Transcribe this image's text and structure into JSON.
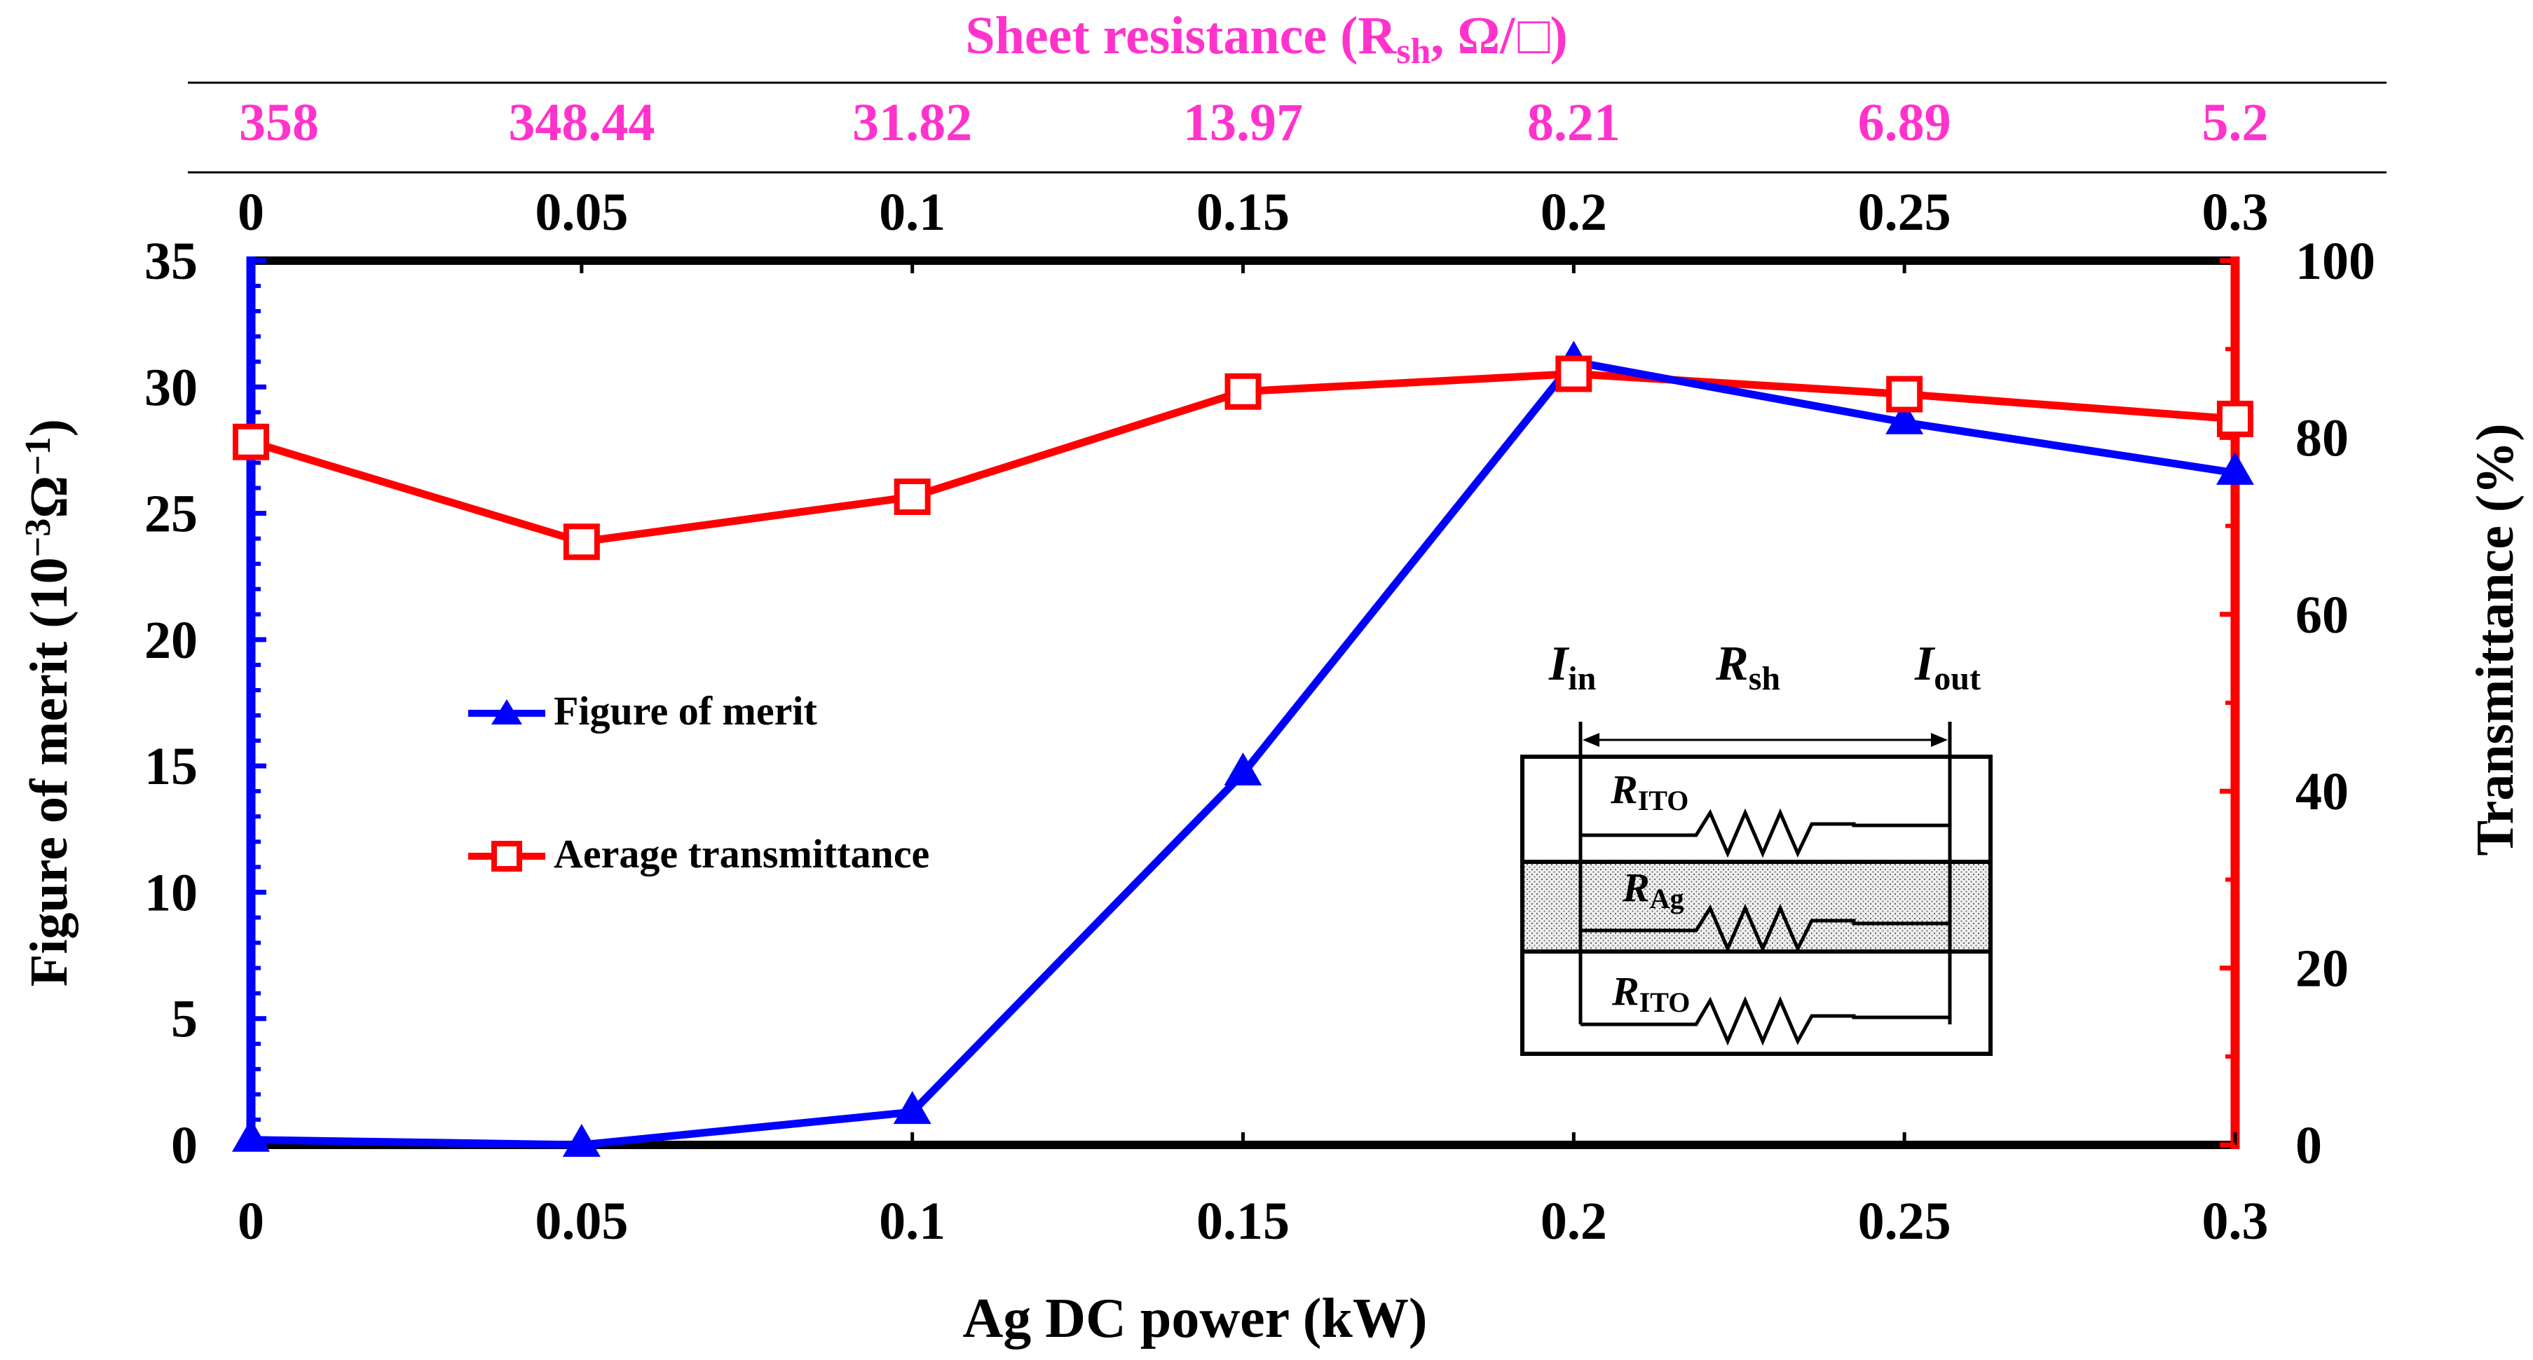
{
  "colors": {
    "figure_of_merit": "#0000ff",
    "transmittance": "#ff0000",
    "sheet_resistance": "#ff33cc",
    "axis": "#000000"
  },
  "chart_data": {
    "type": "line",
    "xlabel": "Ag DC power (kW)",
    "x_ticks": [
      "0",
      "0.05",
      "0.1",
      "0.15",
      "0.2",
      "0.25",
      "0.3"
    ],
    "x": [
      0,
      0.05,
      0.1,
      0.15,
      0.2,
      0.25,
      0.3
    ],
    "xlim": [
      0,
      0.3
    ],
    "top_axis": {
      "title": "Sheet resistance  (Rsh, Ω/□)",
      "title_main": "Sheet resistance  (R",
      "title_sub": "sh",
      "title_tail": ", Ω/",
      "title_close": ")",
      "values": [
        "358",
        "348.44",
        "31.82",
        "13.97",
        "8.21",
        "6.89",
        "5.2"
      ],
      "ticks": [
        "0",
        "0.05",
        "0.1",
        "0.15",
        "0.2",
        "0.25",
        "0.3"
      ]
    },
    "y_left": {
      "label_main": "Figure of merit (10",
      "label_sup1": "−3",
      "label_mid": "Ω",
      "label_sup2": "−1",
      "label_close": ")",
      "ylim": [
        0,
        35
      ],
      "ticks": [
        "0",
        "5",
        "10",
        "15",
        "20",
        "25",
        "30",
        "35"
      ]
    },
    "y_right": {
      "label": "Transmittance (%)",
      "ylim": [
        0,
        100
      ],
      "ticks": [
        "0",
        "20",
        "40",
        "60",
        "80",
        "100"
      ]
    },
    "series": [
      {
        "name": "Figure of merit",
        "axis": "left",
        "marker": "filled-triangle",
        "values": [
          0.2,
          0.0,
          1.3,
          14.7,
          31.0,
          28.6,
          26.6
        ]
      },
      {
        "name": "Aerage transmittance",
        "axis": "right",
        "marker": "open-square",
        "values": [
          79.5,
          68.2,
          73.3,
          85.2,
          87.2,
          84.9,
          82.1
        ]
      }
    ],
    "inset": {
      "i_in": "I",
      "i_in_sub": "in",
      "r_sh": "R",
      "r_sh_sub": "sh",
      "i_out": "I",
      "i_out_sub": "out",
      "r1": "R",
      "r1_sub": "ITO",
      "r2": "R",
      "r2_sub": "Ag",
      "r3": "R",
      "r3_sub": "ITO"
    }
  }
}
